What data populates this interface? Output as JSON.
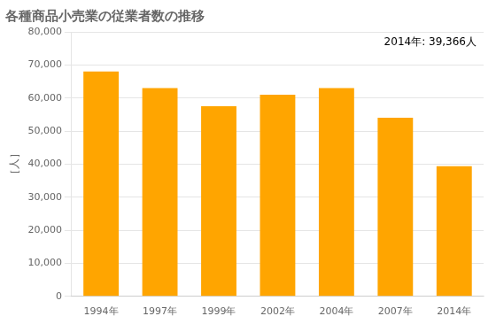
{
  "chart_data": {
    "type": "bar",
    "title": "各種商品小売業の従業者数の推移",
    "ylabel": "［人］",
    "annotation": "2014年: 39,366人",
    "categories": [
      "1994年",
      "1997年",
      "1999年",
      "2002年",
      "2004年",
      "2007年",
      "2014年"
    ],
    "values": [
      68000,
      63000,
      57500,
      61000,
      63000,
      54000,
      39366
    ],
    "color": "#FFA500",
    "ylim": [
      0,
      80000
    ],
    "yticks": [
      0,
      {
        "value": 10000,
        "label": "10,000"
      },
      {
        "value": 20000,
        "label": "20,000"
      },
      {
        "value": 30000,
        "label": "30,000"
      },
      {
        "value": 40000,
        "label": "40,000"
      },
      {
        "value": 50000,
        "label": "50,000"
      },
      {
        "value": 60000,
        "label": "60,000"
      },
      {
        "value": 70000,
        "label": "70,000"
      },
      {
        "value": 80000,
        "label": "80,000"
      }
    ],
    "grid": true
  }
}
